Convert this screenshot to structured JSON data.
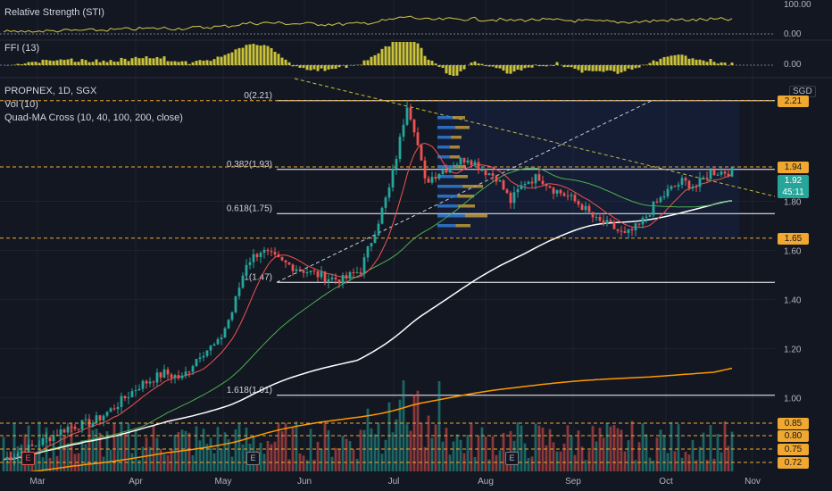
{
  "panes": {
    "rsi": {
      "label": "Relative Strength (STI)",
      "ticks": [
        "100.00",
        "0.00"
      ]
    },
    "ffi": {
      "label": "FFI (13)",
      "ticks": [
        "0.00"
      ]
    }
  },
  "main": {
    "symbol": "PROPNEX, 1D, SGX",
    "volume_label": "Vol (10)",
    "ma_label": "Quad-MA Cross (10, 40, 100, 200, close)",
    "currency": "SGD",
    "last_price": "1.92",
    "countdown": "45:11",
    "fib_levels": [
      {
        "label": "0(2.21)",
        "value": 2.21
      },
      {
        "label": "0.382(1.93)",
        "value": 1.93
      },
      {
        "label": "0.618(1.75)",
        "value": 1.75
      },
      {
        "label": "1(1.47)",
        "value": 1.47
      },
      {
        "label": "1.618(1.01)",
        "value": 1.01
      }
    ],
    "price_tags": [
      {
        "text": "2.21",
        "value": 2.21,
        "color": "#f0a830"
      },
      {
        "text": "1.94",
        "value": 1.94,
        "color": "#f0a830"
      },
      {
        "text": "1.65",
        "value": 1.65,
        "color": "#f0a830"
      }
    ],
    "volume_tags": [
      {
        "text": "0.85",
        "value": 0.85
      },
      {
        "text": "0.80",
        "value": 0.8
      },
      {
        "text": "0.75",
        "value": 0.75
      },
      {
        "text": "0.72",
        "value": 0.72
      }
    ],
    "earnings_marker": "E"
  },
  "colors": {
    "background": "#131722",
    "grid": "#1e222d",
    "up": "#26a69a",
    "down": "#ef5350",
    "ma10": "#ef5350",
    "ma40": "#4caf50",
    "ma100": "#ffffff",
    "ma200": "#ff9800",
    "fib": "#ffffff",
    "tag": "#f0a830",
    "rsi": "#d4c84a",
    "ffi": "#c9c23a"
  },
  "chart_data": {
    "type": "candlestick",
    "title": "PROPNEX, 1D, SGX",
    "x_ticks": [
      "Mar",
      "Apr",
      "May",
      "Jun",
      "Jul",
      "Aug",
      "Sep",
      "Oct",
      "Nov"
    ],
    "y_ticks": [
      1.0,
      1.2,
      1.4,
      1.6,
      1.8
    ],
    "ylim": [
      0.7,
      2.3
    ],
    "grid": true,
    "price_path": [
      [
        0,
        0.75
      ],
      [
        8,
        0.8
      ],
      [
        18,
        0.88
      ],
      [
        25,
        0.9
      ],
      [
        30,
        0.95
      ],
      [
        38,
        1.05
      ],
      [
        45,
        1.1
      ],
      [
        50,
        1.08
      ],
      [
        55,
        1.18
      ],
      [
        60,
        1.22
      ],
      [
        64,
        1.35
      ],
      [
        68,
        1.55
      ],
      [
        72,
        1.6
      ],
      [
        78,
        1.55
      ],
      [
        84,
        1.52
      ],
      [
        90,
        1.49
      ],
      [
        95,
        1.48
      ],
      [
        100,
        1.52
      ],
      [
        104,
        1.68
      ],
      [
        108,
        1.85
      ],
      [
        111,
        2.05
      ],
      [
        113,
        2.2
      ],
      [
        115,
        2.1
      ],
      [
        118,
        1.88
      ],
      [
        122,
        1.92
      ],
      [
        126,
        1.95
      ],
      [
        130,
        1.98
      ],
      [
        134,
        1.93
      ],
      [
        138,
        1.9
      ],
      [
        142,
        1.8
      ],
      [
        146,
        1.88
      ],
      [
        150,
        1.9
      ],
      [
        154,
        1.85
      ],
      [
        158,
        1.82
      ],
      [
        162,
        1.78
      ],
      [
        166,
        1.72
      ],
      [
        170,
        1.7
      ],
      [
        174,
        1.66
      ],
      [
        178,
        1.7
      ],
      [
        182,
        1.78
      ],
      [
        186,
        1.84
      ],
      [
        190,
        1.88
      ],
      [
        194,
        1.86
      ],
      [
        198,
        1.92
      ]
    ]
  }
}
